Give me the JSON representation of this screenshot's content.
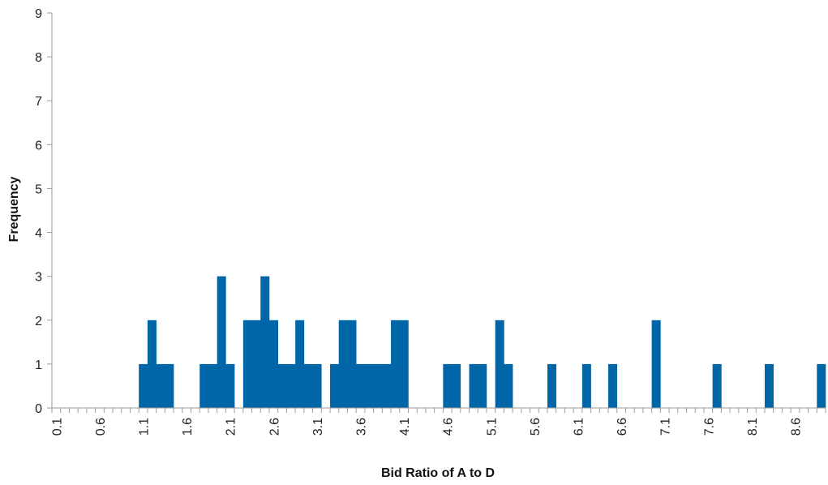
{
  "chart_data": {
    "type": "bar",
    "title": "",
    "xlabel": "Bid Ratio of A to D",
    "ylabel": "Frequency",
    "ylim": [
      0,
      9
    ],
    "yticks": [
      0,
      1,
      2,
      3,
      4,
      5,
      6,
      7,
      8,
      9
    ],
    "grid": false,
    "bar_color": "#0066a8",
    "categories": [
      "0.1",
      "0.2",
      "0.3",
      "0.4",
      "0.5",
      "0.6",
      "0.7",
      "0.8",
      "0.9",
      "1.0",
      "1.1",
      "1.2",
      "1.3",
      "1.4",
      "1.5",
      "1.6",
      "1.7",
      "1.8",
      "1.9",
      "2.0",
      "2.1",
      "2.2",
      "2.3",
      "2.4",
      "2.5",
      "2.6",
      "2.7",
      "2.8",
      "2.9",
      "3.0",
      "3.1",
      "3.2",
      "3.3",
      "3.4",
      "3.5",
      "3.6",
      "3.7",
      "3.8",
      "3.9",
      "4.0",
      "4.1",
      "4.2",
      "4.3",
      "4.4",
      "4.5",
      "4.6",
      "4.7",
      "4.8",
      "4.9",
      "5.0",
      "5.1",
      "5.2",
      "5.3",
      "5.4",
      "5.5",
      "5.6",
      "5.7",
      "5.8",
      "5.9",
      "6.0",
      "6.1",
      "6.2",
      "6.3",
      "6.4",
      "6.5",
      "6.6",
      "6.7",
      "6.8",
      "6.9",
      "7.0",
      "7.1",
      "7.2",
      "7.3",
      "7.4",
      "7.5",
      "7.6",
      "7.7",
      "7.8",
      "7.9",
      "8.0",
      "8.1",
      "8.2",
      "8.3",
      "8.4",
      "8.5",
      "8.6",
      "8.7",
      "8.8",
      "8.9"
    ],
    "tick_labels": [
      "0.1",
      "0.6",
      "1.1",
      "1.6",
      "2.1",
      "2.6",
      "3.1",
      "3.6",
      "4.1",
      "4.6",
      "5.1",
      "5.6",
      "6.1",
      "6.6",
      "7.1",
      "7.6",
      "8.1",
      "8.6"
    ],
    "values": [
      0,
      0,
      0,
      0,
      0,
      0,
      0,
      0,
      0,
      0,
      1,
      2,
      1,
      1,
      0,
      0,
      0,
      1,
      1,
      3,
      1,
      0,
      2,
      2,
      3,
      2,
      1,
      1,
      2,
      1,
      1,
      0,
      1,
      2,
      2,
      1,
      1,
      1,
      1,
      2,
      2,
      0,
      0,
      0,
      0,
      1,
      1,
      0,
      1,
      1,
      0,
      2,
      1,
      0,
      0,
      0,
      0,
      1,
      0,
      0,
      0,
      1,
      0,
      0,
      1,
      0,
      0,
      0,
      0,
      2,
      0,
      0,
      0,
      0,
      0,
      0,
      1,
      0,
      0,
      0,
      0,
      0,
      1,
      0,
      0,
      0,
      0,
      0,
      1
    ]
  }
}
